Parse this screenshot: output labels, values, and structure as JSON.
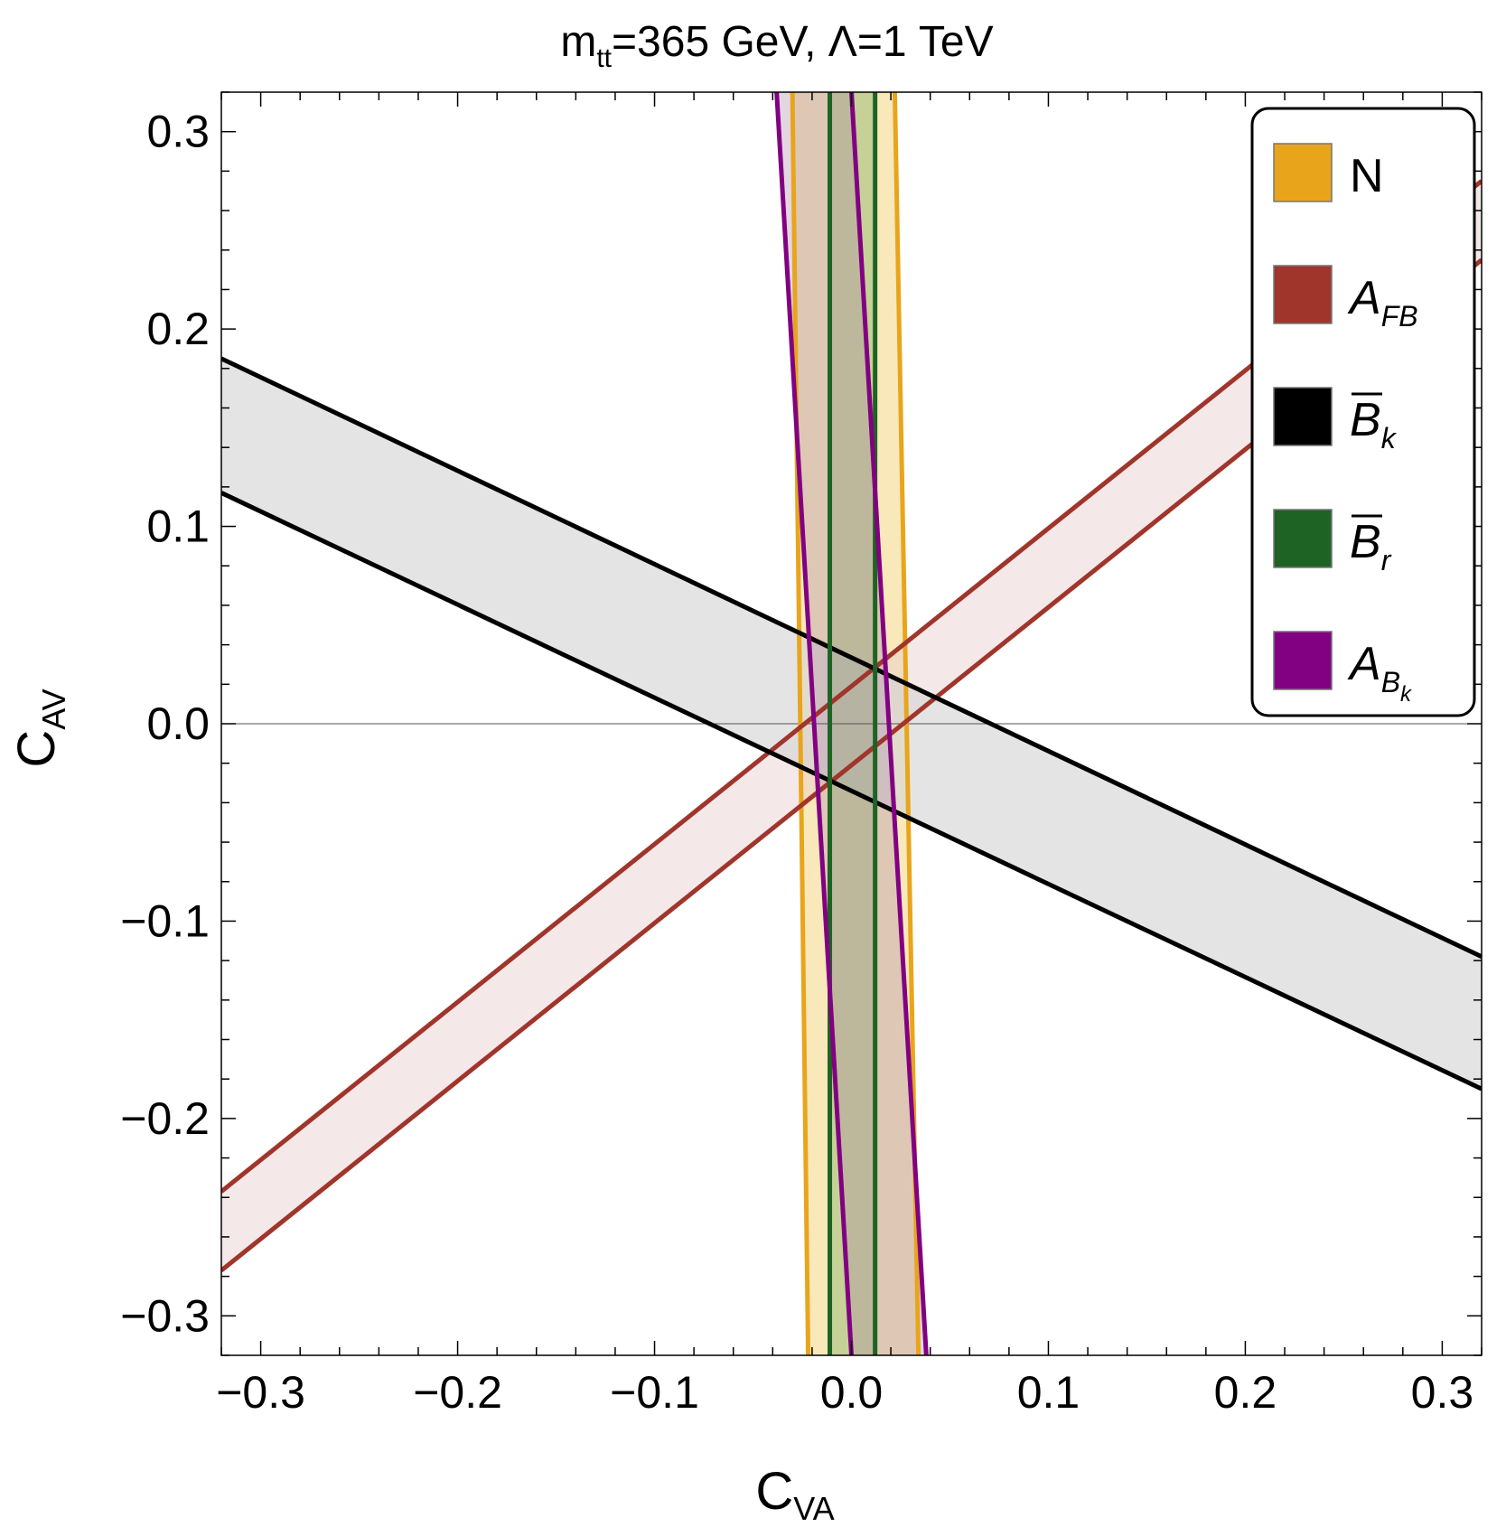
{
  "chart_data": {
    "type": "region",
    "title": {
      "main": "m",
      "sub": "tt",
      "rest": "=365 GeV, Λ=1 TeV"
    },
    "xlabel": {
      "main": "C",
      "sub": "VA"
    },
    "ylabel": {
      "main": "C",
      "sub": "AV"
    },
    "xlim": [
      -0.32,
      0.32
    ],
    "ylim": [
      -0.32,
      0.32
    ],
    "xticks": [
      -0.3,
      -0.2,
      -0.1,
      0.0,
      0.1,
      0.2,
      0.3
    ],
    "yticks": [
      -0.3,
      -0.2,
      -0.1,
      0.0,
      0.1,
      0.2,
      0.3
    ],
    "xtick_labels": [
      "−0.3",
      "−0.2",
      "−0.1",
      "0.0",
      "0.1",
      "0.2",
      "0.3"
    ],
    "ytick_labels": [
      "−0.3",
      "−0.2",
      "−0.1",
      "0.0",
      "0.1",
      "0.2",
      "0.3"
    ],
    "minor_tick_step": 0.02,
    "legend_position": "top-right",
    "series": [
      {
        "name": "N",
        "label": {
          "main": "N",
          "sub": "",
          "italic": false,
          "bar": false
        },
        "color": "#E8A51C",
        "fill": "#F5DC95",
        "fill_opacity": 0.65,
        "lines": [
          {
            "x0": -0.03,
            "x1": -0.022
          },
          {
            "x0": 0.022,
            "x1": 0.034
          }
        ]
      },
      {
        "name": "A_FB",
        "label": {
          "main": "A",
          "sub": "FB",
          "italic": true,
          "bar": false
        },
        "color": "#A0352C",
        "fill": "#E8CCCC",
        "fill_opacity": 0.45,
        "lines": [
          {
            "y_at_xmin": -0.237,
            "y_at_xmax": 0.275
          },
          {
            "y_at_xmin": -0.277,
            "y_at_xmax": 0.235
          }
        ]
      },
      {
        "name": "B_k",
        "label": {
          "main": "B",
          "sub": "k",
          "italic": true,
          "bar": true
        },
        "color": "#000000",
        "fill": "#D6D6D6",
        "fill_opacity": 0.65,
        "lines": [
          {
            "y_at_xmin": 0.185,
            "y_at_xmax": -0.118
          },
          {
            "y_at_xmin": 0.117,
            "y_at_xmax": -0.185
          }
        ]
      },
      {
        "name": "B_r",
        "label": {
          "main": "B",
          "sub": "r",
          "italic": true,
          "bar": true
        },
        "color": "#1E6323",
        "fill": "#9BBE78",
        "fill_opacity": 0.55,
        "lines": [
          {
            "x0": -0.011,
            "x1": -0.011
          },
          {
            "x0": 0.012,
            "x1": 0.012
          }
        ]
      },
      {
        "name": "A_Bk",
        "label": {
          "main": "A",
          "sub": "B",
          "subsub": "k",
          "italic": true,
          "bar": false
        },
        "color": "#820082",
        "fill": "#B08AA8",
        "fill_opacity": 0.35,
        "lines": [
          {
            "x0": -0.038,
            "x1": 0.0
          },
          {
            "x0": 0.0,
            "x1": 0.038
          }
        ]
      }
    ]
  }
}
